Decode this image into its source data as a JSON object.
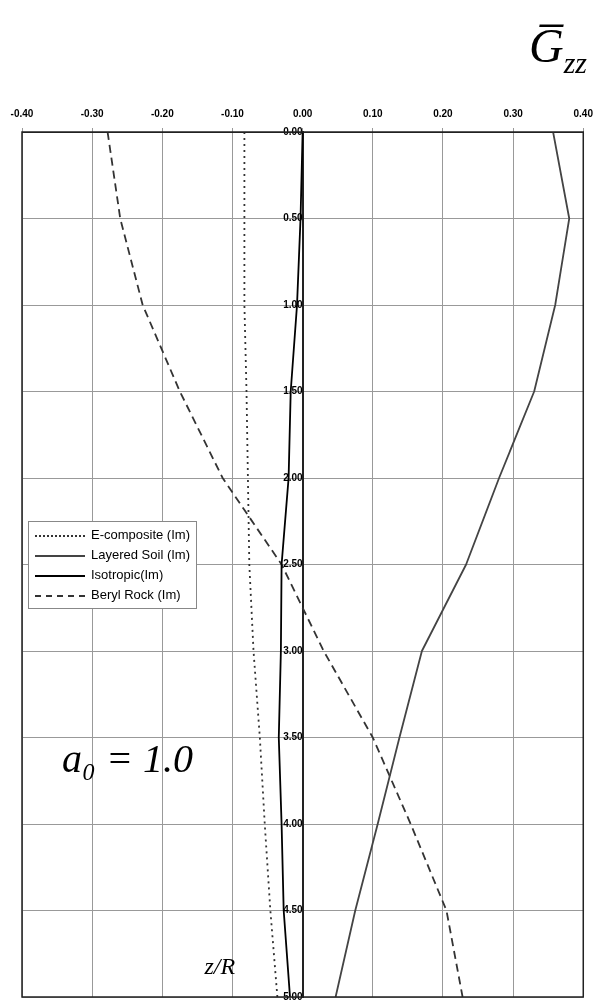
{
  "chart_data": {
    "type": "line",
    "title": "G̅$_{zz}$",
    "ylabel": "z/R",
    "annotations": [
      "a₀ = 1.0"
    ],
    "xlim": [
      -0.4,
      0.4
    ],
    "xticks": [
      {
        "value": -0.4,
        "label": "-0.40"
      },
      {
        "value": -0.3,
        "label": "-0.30"
      },
      {
        "value": -0.2,
        "label": "-0.20"
      },
      {
        "value": -0.1,
        "label": "-0.10"
      },
      {
        "value": 0,
        "label": "0.00"
      },
      {
        "value": 0.1,
        "label": "0.10"
      },
      {
        "value": 0.2,
        "label": "0.20"
      },
      {
        "value": 0.3,
        "label": "0.30"
      },
      {
        "value": 0.4,
        "label": "0.40"
      }
    ],
    "ylim": [
      5,
      0
    ],
    "yticks": [
      {
        "value": 0,
        "label": "0.00"
      },
      {
        "value": 0.5,
        "label": "0.50"
      },
      {
        "value": 1,
        "label": "1.00"
      },
      {
        "value": 1.5,
        "label": "1.50"
      },
      {
        "value": 2,
        "label": "2.00"
      },
      {
        "value": 2.5,
        "label": "2.50"
      },
      {
        "value": 3,
        "label": "3.00"
      },
      {
        "value": 3.5,
        "label": "3.50"
      },
      {
        "value": 4,
        "label": "4.00"
      },
      {
        "value": 4.5,
        "label": "4.50"
      },
      {
        "value": 5,
        "label": "5.00"
      }
    ],
    "grid": true,
    "legend": "left",
    "marker": "none",
    "series": [
      {
        "name": "E-composite (Im)",
        "color": "#333333",
        "line_style": "dotted",
        "x": [
          -0.083,
          -0.083,
          -0.083,
          -0.08,
          -0.078,
          -0.076,
          -0.07,
          -0.061,
          -0.054,
          -0.046,
          -0.036
        ],
        "values": [
          0,
          0.5,
          1,
          1.5,
          2,
          2.5,
          3,
          3.5,
          4,
          4.5,
          5
        ]
      },
      {
        "name": "Layered Soil (Im)",
        "color": "#444444",
        "line_style": "solid",
        "x": [
          0.357,
          0.38,
          0.36,
          0.33,
          0.28,
          0.233,
          0.17,
          0.138,
          0.107,
          0.075,
          0.047
        ],
        "values": [
          0,
          0.5,
          1,
          1.5,
          2,
          2.5,
          3,
          3.5,
          4,
          4.5,
          5
        ]
      },
      {
        "name": "Isotropic(Im)",
        "color": "#000000",
        "line_style": "solid",
        "x": [
          0,
          -0.003,
          -0.008,
          -0.017,
          -0.02,
          -0.03,
          -0.031,
          -0.034,
          -0.03,
          -0.027,
          -0.018
        ],
        "values": [
          0,
          0.5,
          1,
          1.5,
          2,
          2.5,
          3,
          3.5,
          4,
          4.5,
          5
        ]
      },
      {
        "name": "Beryl Rock (Im)",
        "color": "#333333",
        "line_style": "dashed",
        "x": [
          -0.278,
          -0.26,
          -0.228,
          -0.175,
          -0.114,
          -0.03,
          0.03,
          0.1,
          0.154,
          0.205,
          0.228
        ],
        "values": [
          0,
          0.5,
          1,
          1.5,
          2,
          2.5,
          3,
          3.5,
          4,
          4.5,
          5
        ]
      }
    ]
  }
}
